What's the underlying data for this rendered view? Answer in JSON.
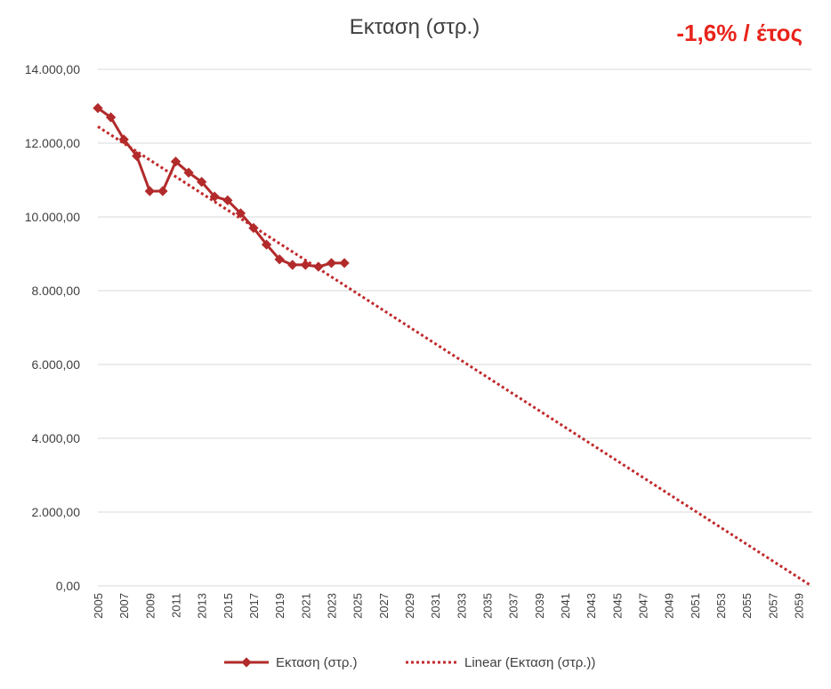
{
  "chart_data": {
    "type": "line",
    "title": "Εκταση (στρ.)",
    "annotation": "-1,6% / έτος",
    "xlabel": "",
    "ylabel": "",
    "ylim": [
      0,
      14000
    ],
    "y_ticks": [
      0,
      2000,
      4000,
      6000,
      8000,
      10000,
      12000,
      14000
    ],
    "y_tick_labels": [
      "0,00",
      "2.000,00",
      "4.000,00",
      "6.000,00",
      "8.000,00",
      "10.000,00",
      "12.000,00",
      "14.000,00"
    ],
    "x_range": [
      2005,
      2060
    ],
    "x_tick_labels": [
      "2005",
      "2007",
      "2009",
      "2011",
      "2013",
      "2015",
      "2017",
      "2019",
      "2021",
      "2023",
      "2025",
      "2027",
      "2029",
      "2031",
      "2033",
      "2035",
      "2037",
      "2039",
      "2041",
      "2043",
      "2045",
      "2047",
      "2049",
      "2051",
      "2053",
      "2055",
      "2057",
      "2059"
    ],
    "grid": true,
    "legend_position": "bottom",
    "series": [
      {
        "name": "Εκταση (στρ.)",
        "style": "line-markers",
        "color": "#b22a2a",
        "x": [
          2005,
          2006,
          2007,
          2008,
          2009,
          2010,
          2011,
          2012,
          2013,
          2014,
          2015,
          2016,
          2017,
          2018,
          2019,
          2020,
          2021,
          2022,
          2023,
          2024
        ],
        "values": [
          12950,
          12700,
          12100,
          11650,
          10700,
          10700,
          11500,
          11200,
          10950,
          10550,
          10450,
          10100,
          9700,
          9250,
          8850,
          8700,
          8700,
          8650,
          8750,
          8750
        ]
      },
      {
        "name": "Linear (Εκταση (στρ.))",
        "style": "dotted",
        "color": "#c0292b",
        "x": [
          2005,
          2060
        ],
        "values": [
          12450,
          0
        ]
      }
    ]
  }
}
